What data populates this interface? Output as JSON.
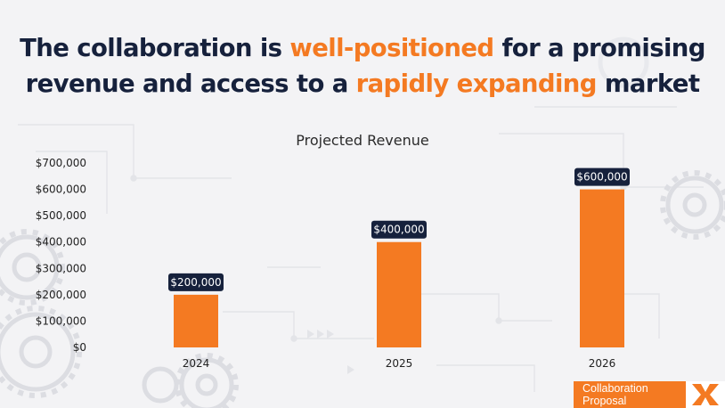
{
  "headline": {
    "part1": "The collaboration is ",
    "highlight1": "well-positioned",
    "part2": " for a promising revenue and access to a ",
    "highlight2": "rapidly expanding",
    "part3": " market"
  },
  "chart_data": {
    "type": "bar",
    "title": "Projected Revenue",
    "categories": [
      "2024",
      "2025",
      "2026"
    ],
    "values": [
      200000,
      400000,
      600000
    ],
    "data_labels": [
      "$200,000",
      "$400,000",
      "$600,000"
    ],
    "y_ticks": [
      0,
      100000,
      200000,
      300000,
      400000,
      500000,
      600000,
      700000
    ],
    "y_tick_labels": [
      "$0",
      "$100,000",
      "$200,000",
      "$300,000",
      "$400,000",
      "$500,000",
      "$600,000",
      "$700,000"
    ],
    "ylim": [
      0,
      700000
    ],
    "xlabel": "",
    "ylabel": "",
    "grid": false,
    "legend": "none"
  },
  "footer": {
    "label": "Collaboration Proposal"
  },
  "colors": {
    "accent": "#f47a22",
    "dark": "#16213c",
    "text": "#222222"
  }
}
